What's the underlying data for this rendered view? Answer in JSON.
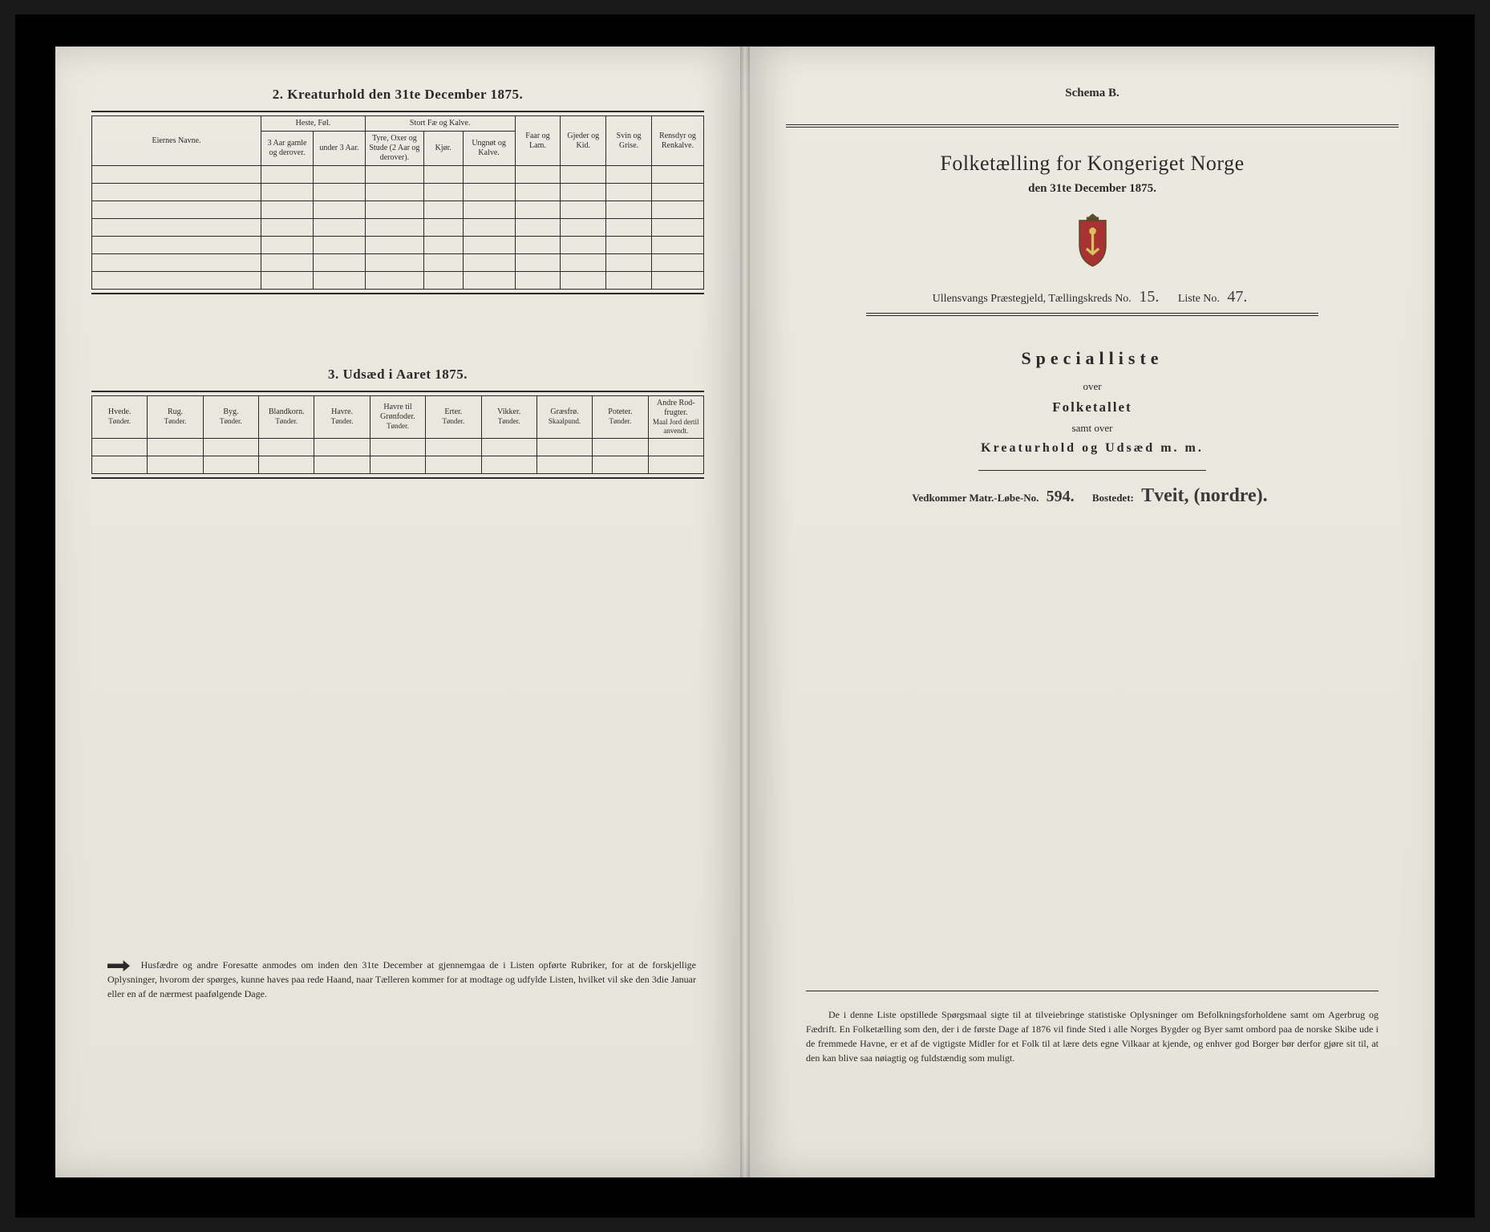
{
  "left": {
    "section2": {
      "title": "2.  Kreaturhold den 31te December 1875.",
      "col_eier": "Eiernes Navne.",
      "grp_heste": "Heste, Føl.",
      "grp_stort": "Stort Fæ og Kalve.",
      "col_faar": "Faar og Lam.",
      "col_gjeder": "Gjeder og Kid.",
      "col_svin": "Svin og Grise.",
      "col_rensdyr": "Rensdyr og Renkalve.",
      "h1": "3 Aar gamle og derover.",
      "h2": "under 3 Aar.",
      "s1": "Tyre, Oxer og Stude (2 Aar og derover).",
      "s2": "Kjør.",
      "s3": "Ungnøt og Kalve."
    },
    "section3": {
      "title": "3.  Udsæd i Aaret 1875.",
      "cols": [
        {
          "h": "Hvede.",
          "s": "Tønder."
        },
        {
          "h": "Rug.",
          "s": "Tønder."
        },
        {
          "h": "Byg.",
          "s": "Tønder."
        },
        {
          "h": "Blandkorn.",
          "s": "Tønder."
        },
        {
          "h": "Havre.",
          "s": "Tønder."
        },
        {
          "h": "Havre til Grønfoder.",
          "s": "Tønder."
        },
        {
          "h": "Erter.",
          "s": "Tønder."
        },
        {
          "h": "Vikker.",
          "s": "Tønder."
        },
        {
          "h": "Græsfrø.",
          "s": "Skaalpund."
        },
        {
          "h": "Poteter.",
          "s": "Tønder."
        },
        {
          "h": "Andre Rod-frugter.",
          "s": "Maal Jord dertil anvendt."
        }
      ]
    },
    "footnote": "Husfædre og andre Foresatte anmodes om inden den 31te December at gjennemgaa de i Listen opførte Rubriker, for at de forskjellige Oplysninger, hvorom der spørges, kunne haves paa rede Haand, naar Tælleren kommer for at modtage og udfylde Listen, hvilket vil ske den 3die Januar eller en af de nærmest paafølgende Dage."
  },
  "right": {
    "schema": "Schema B.",
    "title": "Folketælling for Kongeriget Norge",
    "date": "den 31te December 1875.",
    "parish_label": "Ullensvangs Præstegjeld, Tællingskreds No.",
    "parish_no": "15.",
    "list_label": "Liste No.",
    "list_no": "47.",
    "spec": "Specialliste",
    "over": "over",
    "folketallet": "Folketallet",
    "samt_over": "samt over",
    "kreatur": "Kreaturhold og Udsæd m. m.",
    "matr_label": "Vedkommer Matr.-Løbe-No.",
    "matr_no": "594.",
    "bosted_label": "Bostedet:",
    "bosted_val": "Tveit, (nordre).",
    "footer": "De i denne Liste opstillede Spørgsmaal sigte til at tilveiebringe statistiske Oplysninger om Befolkningsforholdene samt om Agerbrug og Fædrift.  En Folketælling som den, der i de første Dage af 1876 vil finde Sted i alle Norges Bygder og Byer samt ombord paa de norske Skibe ude i de fremmede Havne, er et af de vigtigste Midler for et Folk til at lære dets egne Vilkaar at kjende, og enhver god Borger bør derfor gjøre sit til, at den kan blive saa nøiagtig og fuldstændig som muligt."
  }
}
